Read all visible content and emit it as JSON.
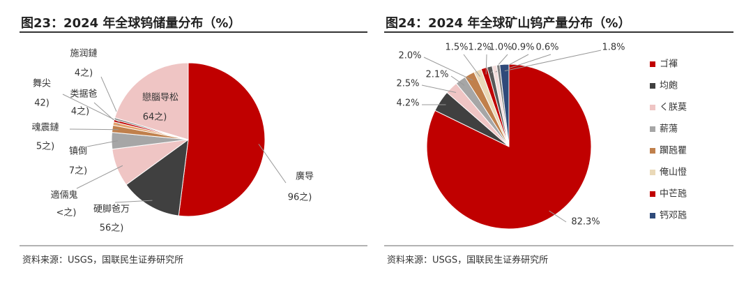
{
  "chart_data": [
    {
      "type": "pie",
      "title": "图23：2024 年全球钨储量分布（%）",
      "source": "资料来源：USGS，国联民生证券研究所",
      "categories": [
        "廣导",
        "硬脚爸万",
        "適倆鬼",
        "镇倒",
        "魂震鏈",
        "类据爸",
        "舞尖",
        "施润鏈",
        "戀腦导松"
      ],
      "sublabels": [
        "96之)",
        "56之)",
        "<之)",
        "7之)",
        "5之)",
        "4之)",
        "42)",
        "4之)",
        "64之)"
      ],
      "values": [
        52,
        13,
        8,
        3.5,
        1.5,
        0.7,
        0.5,
        0.4,
        20.4
      ],
      "colors": [
        "#c00000",
        "#404040",
        "#efc5c4",
        "#a6a6a6",
        "#c0804c",
        "#e3a06a",
        "#c00000",
        "#7f7f7f",
        "#efc5c4"
      ]
    },
    {
      "type": "pie",
      "title": "图24：2024 年全球矿山钨产量分布（%）",
      "source": "资料来源：USGS，国联民生证券研究所",
      "categories": [
        "ゴ褌",
        "均皰",
        "く朕莫",
        "薪蕩",
        "躙瓲瞿",
        "俺山憕",
        "中芒瓲",
        null,
        null,
        null,
        "钙邓瓲"
      ],
      "values": [
        82.3,
        4.2,
        2.5,
        2.1,
        2.0,
        1.5,
        1.2,
        1.0,
        0.9,
        0.6,
        1.8
      ],
      "value_labels": [
        "82.3%",
        "4.2%",
        "2.5%",
        "2.1%",
        "2.0%",
        "1.5%",
        "1.2%",
        "1.0%",
        "0.9%",
        "0.6%",
        "1.8%"
      ],
      "colors": [
        "#c00000",
        "#404040",
        "#efc5c4",
        "#a6a6a6",
        "#c0804c",
        "#ead9b8",
        "#c00000",
        "#595959",
        "#f2dcdb",
        "#7f7f7f",
        "#2f4a7a"
      ],
      "legend": "right"
    }
  ]
}
